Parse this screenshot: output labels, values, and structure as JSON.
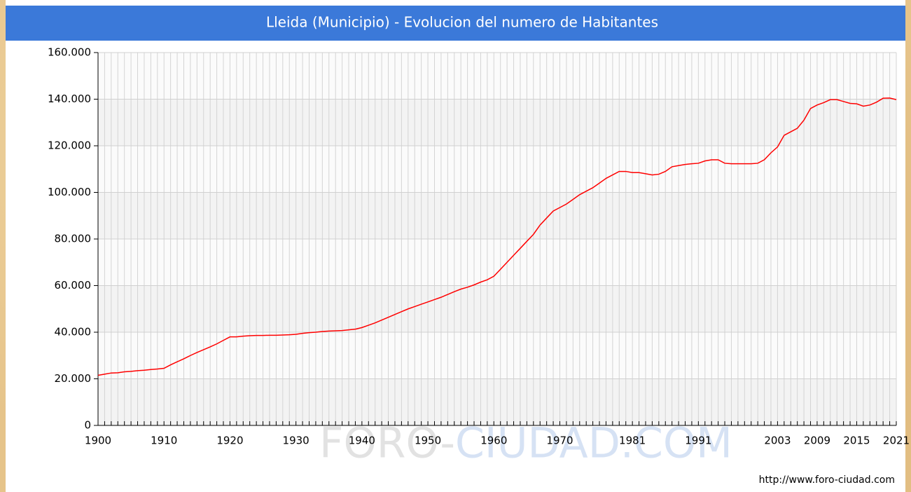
{
  "chart_data": {
    "type": "line",
    "title": "Lleida (Municipio) - Evolucion del numero de Habitantes",
    "watermark": [
      "FORO-",
      "CIUDAD.COM"
    ],
    "source": "http://www.foro-ciudad.com",
    "x": [
      1900,
      1901,
      1902,
      1903,
      1904,
      1905,
      1906,
      1907,
      1908,
      1909,
      1910,
      1911,
      1912,
      1913,
      1914,
      1915,
      1916,
      1917,
      1918,
      1919,
      1920,
      1921,
      1922,
      1923,
      1924,
      1925,
      1926,
      1927,
      1928,
      1929,
      1930,
      1931,
      1932,
      1933,
      1934,
      1935,
      1936,
      1937,
      1938,
      1939,
      1940,
      1941,
      1942,
      1943,
      1944,
      1945,
      1946,
      1947,
      1948,
      1949,
      1950,
      1951,
      1952,
      1953,
      1954,
      1955,
      1956,
      1957,
      1958,
      1959,
      1960,
      1961,
      1962,
      1963,
      1964,
      1965,
      1966,
      1967,
      1968,
      1969,
      1970,
      1971,
      1972,
      1973,
      1974,
      1975,
      1976,
      1977,
      1978,
      1979,
      1980,
      1981,
      1982,
      1983,
      1984,
      1985,
      1986,
      1987,
      1988,
      1989,
      1990,
      1991,
      1992,
      1993,
      1994,
      1995,
      1996,
      1997,
      1998,
      1999,
      2000,
      2001,
      2002,
      2003,
      2004,
      2005,
      2006,
      2007,
      2008,
      2009,
      2010,
      2011,
      2012,
      2013,
      2014,
      2015,
      2016,
      2017,
      2018,
      2019,
      2020,
      2021
    ],
    "values": [
      21500,
      22000,
      22500,
      22600,
      23000,
      23200,
      23500,
      23700,
      24000,
      24200,
      24500,
      26000,
      27300,
      28600,
      30000,
      31300,
      32500,
      33700,
      35000,
      36500,
      38000,
      38000,
      38300,
      38500,
      38600,
      38600,
      38700,
      38700,
      38800,
      38900,
      39100,
      39500,
      39800,
      40000,
      40300,
      40500,
      40600,
      40700,
      41000,
      41300,
      42000,
      43000,
      44000,
      45200,
      46400,
      47600,
      48800,
      50000,
      51000,
      52000,
      53000,
      54000,
      55000,
      56200,
      57400,
      58500,
      59300,
      60300,
      61500,
      62500,
      64000,
      67000,
      70000,
      73000,
      76000,
      79000,
      82000,
      86000,
      89000,
      92000,
      93500,
      95000,
      97000,
      99000,
      100500,
      102000,
      104000,
      106000,
      107500,
      109000,
      109000,
      108500,
      108500,
      108000,
      107500,
      107800,
      109000,
      111000,
      111500,
      112000,
      112300,
      112500,
      113500,
      114000,
      114000,
      112500,
      112300,
      112300,
      112300,
      112300,
      112500,
      114000,
      117000,
      119500,
      124500,
      126000,
      127500,
      131000,
      136000,
      137500,
      138500,
      139800,
      139800,
      139000,
      138200,
      138000,
      137000,
      137500,
      138700,
      140400,
      140500,
      139800
    ],
    "color": "#ff0000",
    "xlim": [
      1900,
      2021
    ],
    "xticks": [
      1900,
      1910,
      1920,
      1930,
      1940,
      1950,
      1960,
      1970,
      1981,
      1991,
      2003,
      2009,
      2015,
      2021
    ],
    "ylim": [
      0,
      160000
    ],
    "yticks": [
      0,
      {
        "value": 20000,
        "label": "20.000"
      },
      {
        "value": 40000,
        "label": "40.000"
      },
      {
        "value": 60000,
        "label": "60.000"
      },
      {
        "value": 80000,
        "label": "80.000"
      },
      {
        "value": 100000,
        "label": "100.000"
      },
      {
        "value": 120000,
        "label": "120.000"
      },
      {
        "value": 140000,
        "label": "140.000"
      },
      {
        "value": 160000,
        "label": "160.000"
      }
    ],
    "grid": true
  }
}
